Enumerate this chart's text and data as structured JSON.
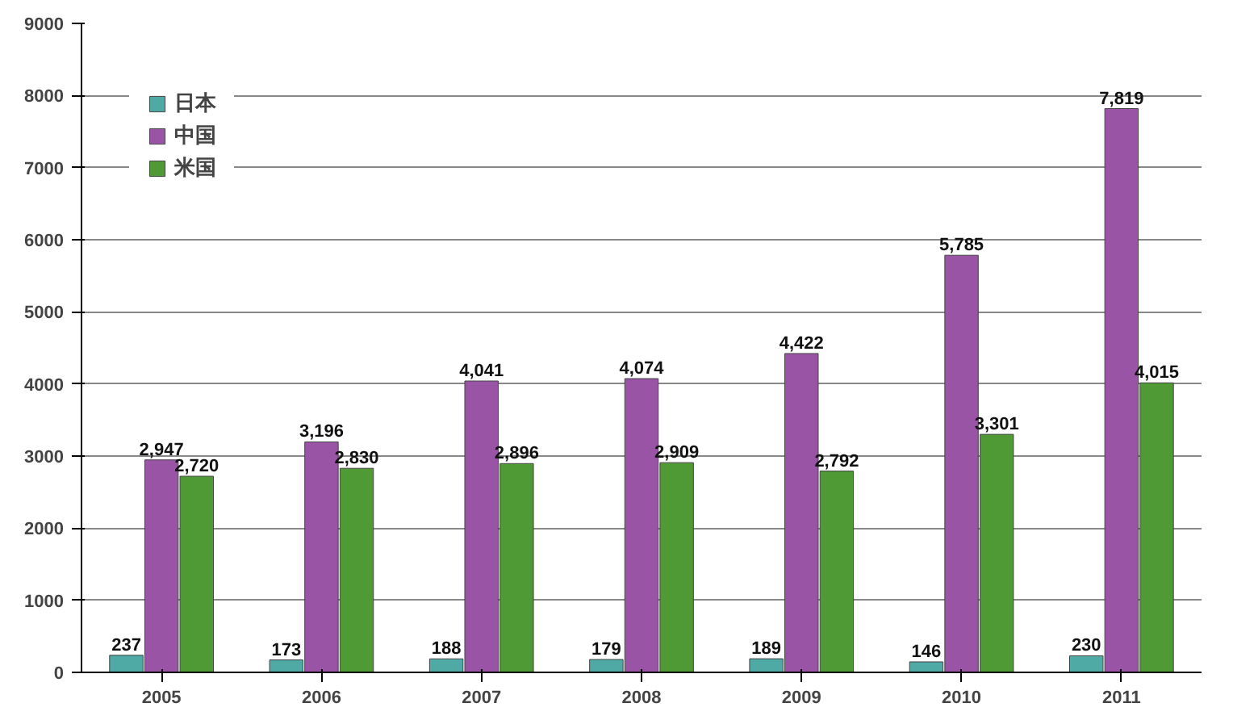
{
  "chart_data": {
    "type": "bar",
    "categories": [
      "2005",
      "2006",
      "2007",
      "2008",
      "2009",
      "2010",
      "2011"
    ],
    "series": [
      {
        "name": "日本",
        "color": "#4fa9a4",
        "values": [
          237,
          173,
          188,
          179,
          189,
          146,
          230
        ],
        "value_labels": [
          "237",
          "173",
          "188",
          "179",
          "189",
          "146",
          "230"
        ]
      },
      {
        "name": "中国",
        "color": "#9a54a6",
        "values": [
          2947,
          3196,
          4041,
          4074,
          4422,
          5785,
          7819
        ],
        "value_labels": [
          "2,947",
          "3,196",
          "4,041",
          "4,074",
          "4,422",
          "5,785",
          "7,819"
        ]
      },
      {
        "name": "米国",
        "color": "#4f9a34",
        "values": [
          2720,
          2830,
          2896,
          2909,
          2792,
          3301,
          4015
        ],
        "value_labels": [
          "2,720",
          "2,830",
          "2,896",
          "2,909",
          "2,792",
          "3,301",
          "4,015"
        ]
      }
    ],
    "ylim": [
      0,
      9000
    ],
    "yticks": [
      0,
      1000,
      2000,
      3000,
      4000,
      5000,
      6000,
      7000,
      8000,
      9000
    ],
    "grid": "y",
    "legend": "top left"
  }
}
